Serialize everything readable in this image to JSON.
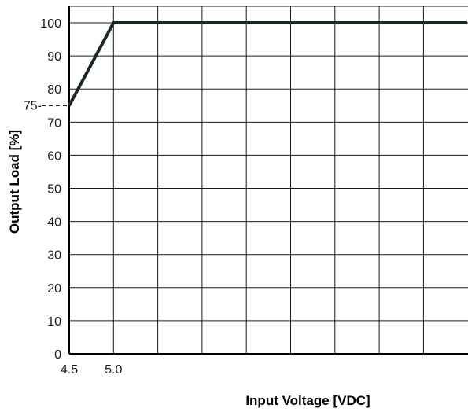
{
  "chart_data": {
    "type": "line",
    "title": "",
    "xlabel": "Input Voltage [VDC]",
    "ylabel": "Output Load [%]",
    "x_tick_labels": [
      "4.5",
      "5.0"
    ],
    "y_tick_labels": [
      "0",
      "10",
      "20",
      "30",
      "40",
      "50",
      "60",
      "70",
      "80",
      "90",
      "100"
    ],
    "ylim": [
      0,
      105
    ],
    "grid": true,
    "annotation": {
      "label": "75-",
      "y": 75
    },
    "series": [
      {
        "x": [
          4.5,
          5.0,
          9.5
        ],
        "y": [
          75,
          100,
          100
        ]
      }
    ],
    "colors": {
      "line": "#1a2a22",
      "grid": "#1a1a1a",
      "axis": "#000000"
    }
  }
}
